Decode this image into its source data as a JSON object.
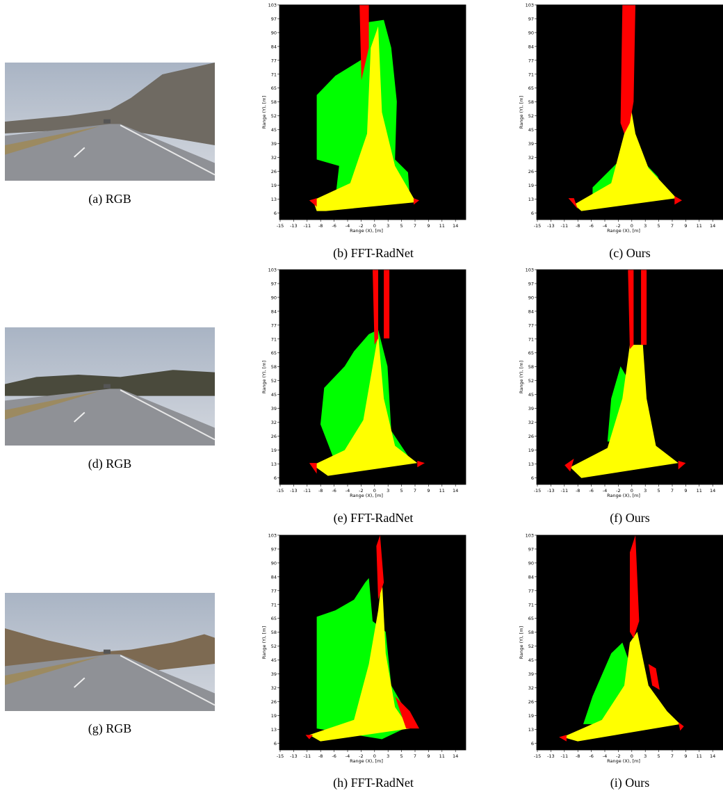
{
  "panels": [
    {
      "caption": "(a) RGB"
    },
    {
      "caption": "(b) FFT-RadNet"
    },
    {
      "caption": "(c) Ours"
    },
    {
      "caption": "(d) RGB"
    },
    {
      "caption": "(e) FFT-RadNet"
    },
    {
      "caption": "(f) Ours"
    },
    {
      "caption": "(g) RGB"
    },
    {
      "caption": "(h) FFT-RadNet"
    },
    {
      "caption": "(i) Ours"
    }
  ],
  "plot_axes": {
    "ylabel": "Range (Y), [m]",
    "xlabel": "Range (X), [m]",
    "yticks": [
      103,
      97,
      90,
      84,
      77,
      71,
      65,
      58,
      52,
      45,
      39,
      32,
      26,
      19,
      13,
      6
    ],
    "xticks": [
      -15,
      -13,
      -11,
      -8,
      -6,
      -4,
      -2,
      0,
      3,
      5,
      7,
      9,
      11,
      14
    ]
  }
}
